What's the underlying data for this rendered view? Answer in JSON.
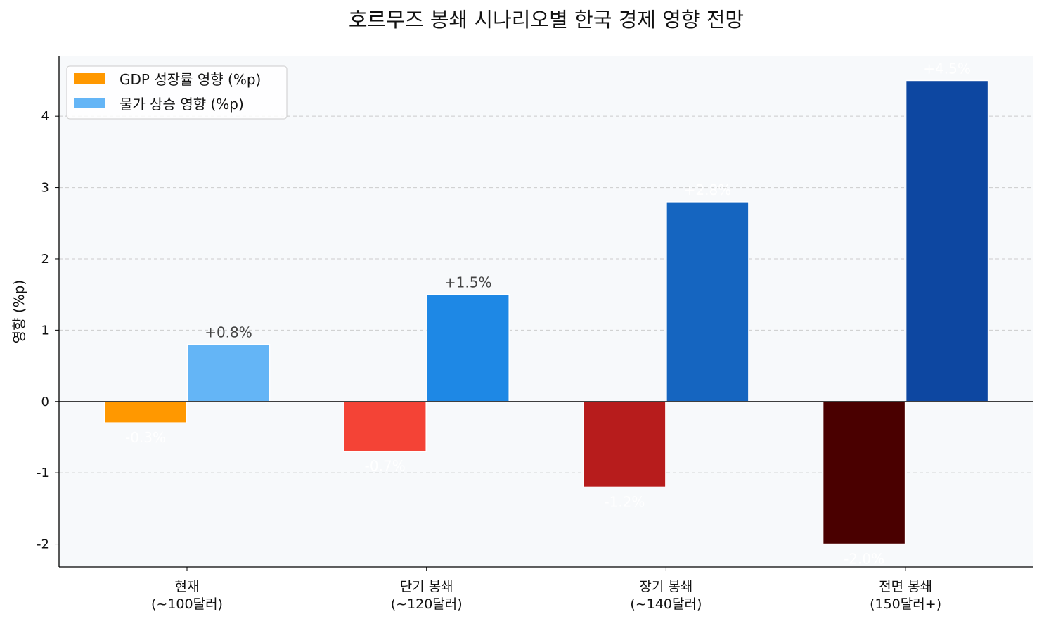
{
  "chart_data": {
    "type": "bar",
    "title": "호르무즈 봉쇄 시나리오별 한국 경제 영향 전망",
    "xlabel": "",
    "ylabel": "영향 (%p)",
    "categories": [
      "현재\n(~100달러)",
      "단기 봉쇄\n(~120달러)",
      "장기 봉쇄\n(~140달러)",
      "전면 봉쇄\n(150달러+)"
    ],
    "series": [
      {
        "name": "GDP 성장률 영향 (%p)",
        "values": [
          -0.3,
          -0.7,
          -1.2,
          -2.0
        ],
        "labels": [
          "-0.3%",
          "-0.7%",
          "-1.2%",
          "-2.0%"
        ],
        "colors": [
          "#FF9800",
          "#F44336",
          "#B71C1C",
          "#4A0000"
        ]
      },
      {
        "name": "물가 상승 영향 (%p)",
        "values": [
          0.8,
          1.5,
          2.8,
          4.5
        ],
        "labels": [
          "+0.8%",
          "+1.5%",
          "+2.8%",
          "+4.5%"
        ],
        "colors": [
          "#64B5F6",
          "#1E88E5",
          "#1565C0",
          "#0D47A1"
        ]
      }
    ],
    "ylim": [
      -2.32,
      4.84
    ],
    "yticks": [
      -2,
      -1,
      0,
      1,
      2,
      3,
      4
    ],
    "grid": "y dashed",
    "legend": "top-left",
    "background": "#F7F9FB"
  }
}
